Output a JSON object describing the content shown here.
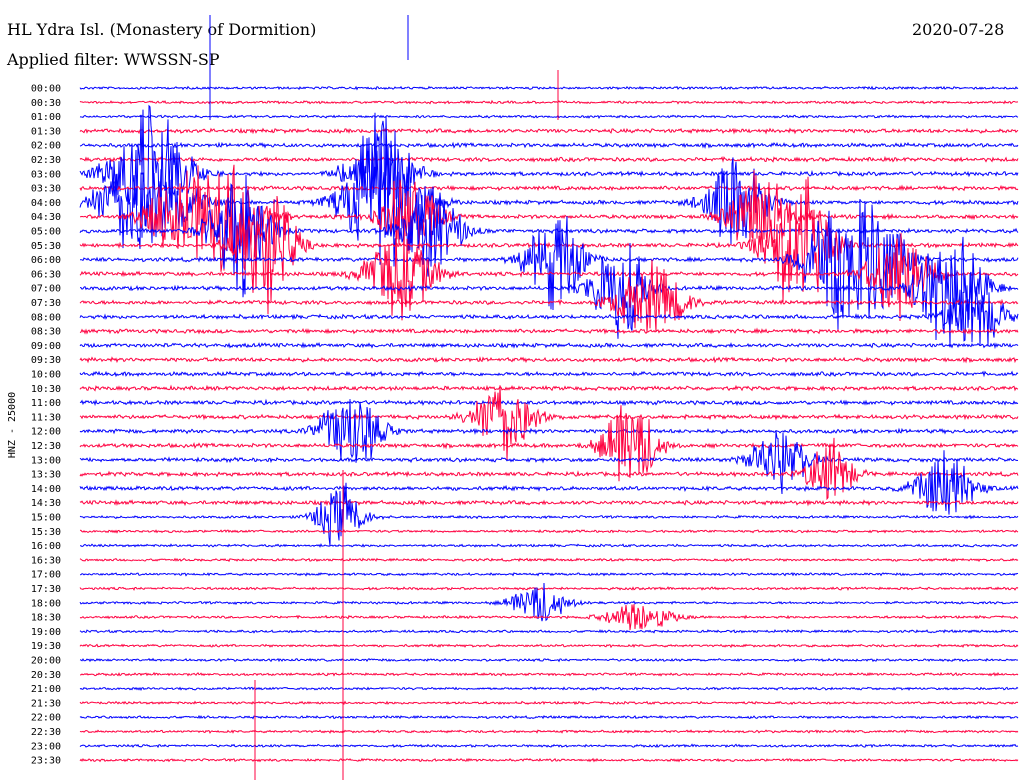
{
  "header": {
    "station": "HL Ydra Isl. (Monastery of Dormition)",
    "date": "2020-07-28",
    "filter": "Applied filter: WWSSN-SP"
  },
  "chart_data": {
    "type": "line",
    "title": "HL Ydra Isl. (Monastery of Dormition)",
    "ylabel": "HNZ - 25000",
    "grid": false,
    "colors": {
      "blue": "#0000ff",
      "red": "#ff0040"
    },
    "tick_labels": [
      "00:00",
      "00:30",
      "01:00",
      "01:30",
      "02:00",
      "02:30",
      "03:00",
      "03:30",
      "04:00",
      "04:30",
      "05:00",
      "05:30",
      "06:00",
      "06:30",
      "07:00",
      "07:30",
      "08:00",
      "08:30",
      "09:00",
      "09:30",
      "10:00",
      "10:30",
      "11:00",
      "11:30",
      "12:00",
      "12:30",
      "13:00",
      "13:30",
      "14:00",
      "14:30",
      "15:00",
      "15:30",
      "16:00",
      "16:30",
      "17:00",
      "17:30",
      "18:00",
      "18:30",
      "19:00",
      "19:30",
      "20:00",
      "20:30",
      "21:00",
      "21:30",
      "22:00",
      "22:30",
      "23:00",
      "23:30"
    ],
    "trace_color_order": [
      "blue",
      "red"
    ]
  }
}
